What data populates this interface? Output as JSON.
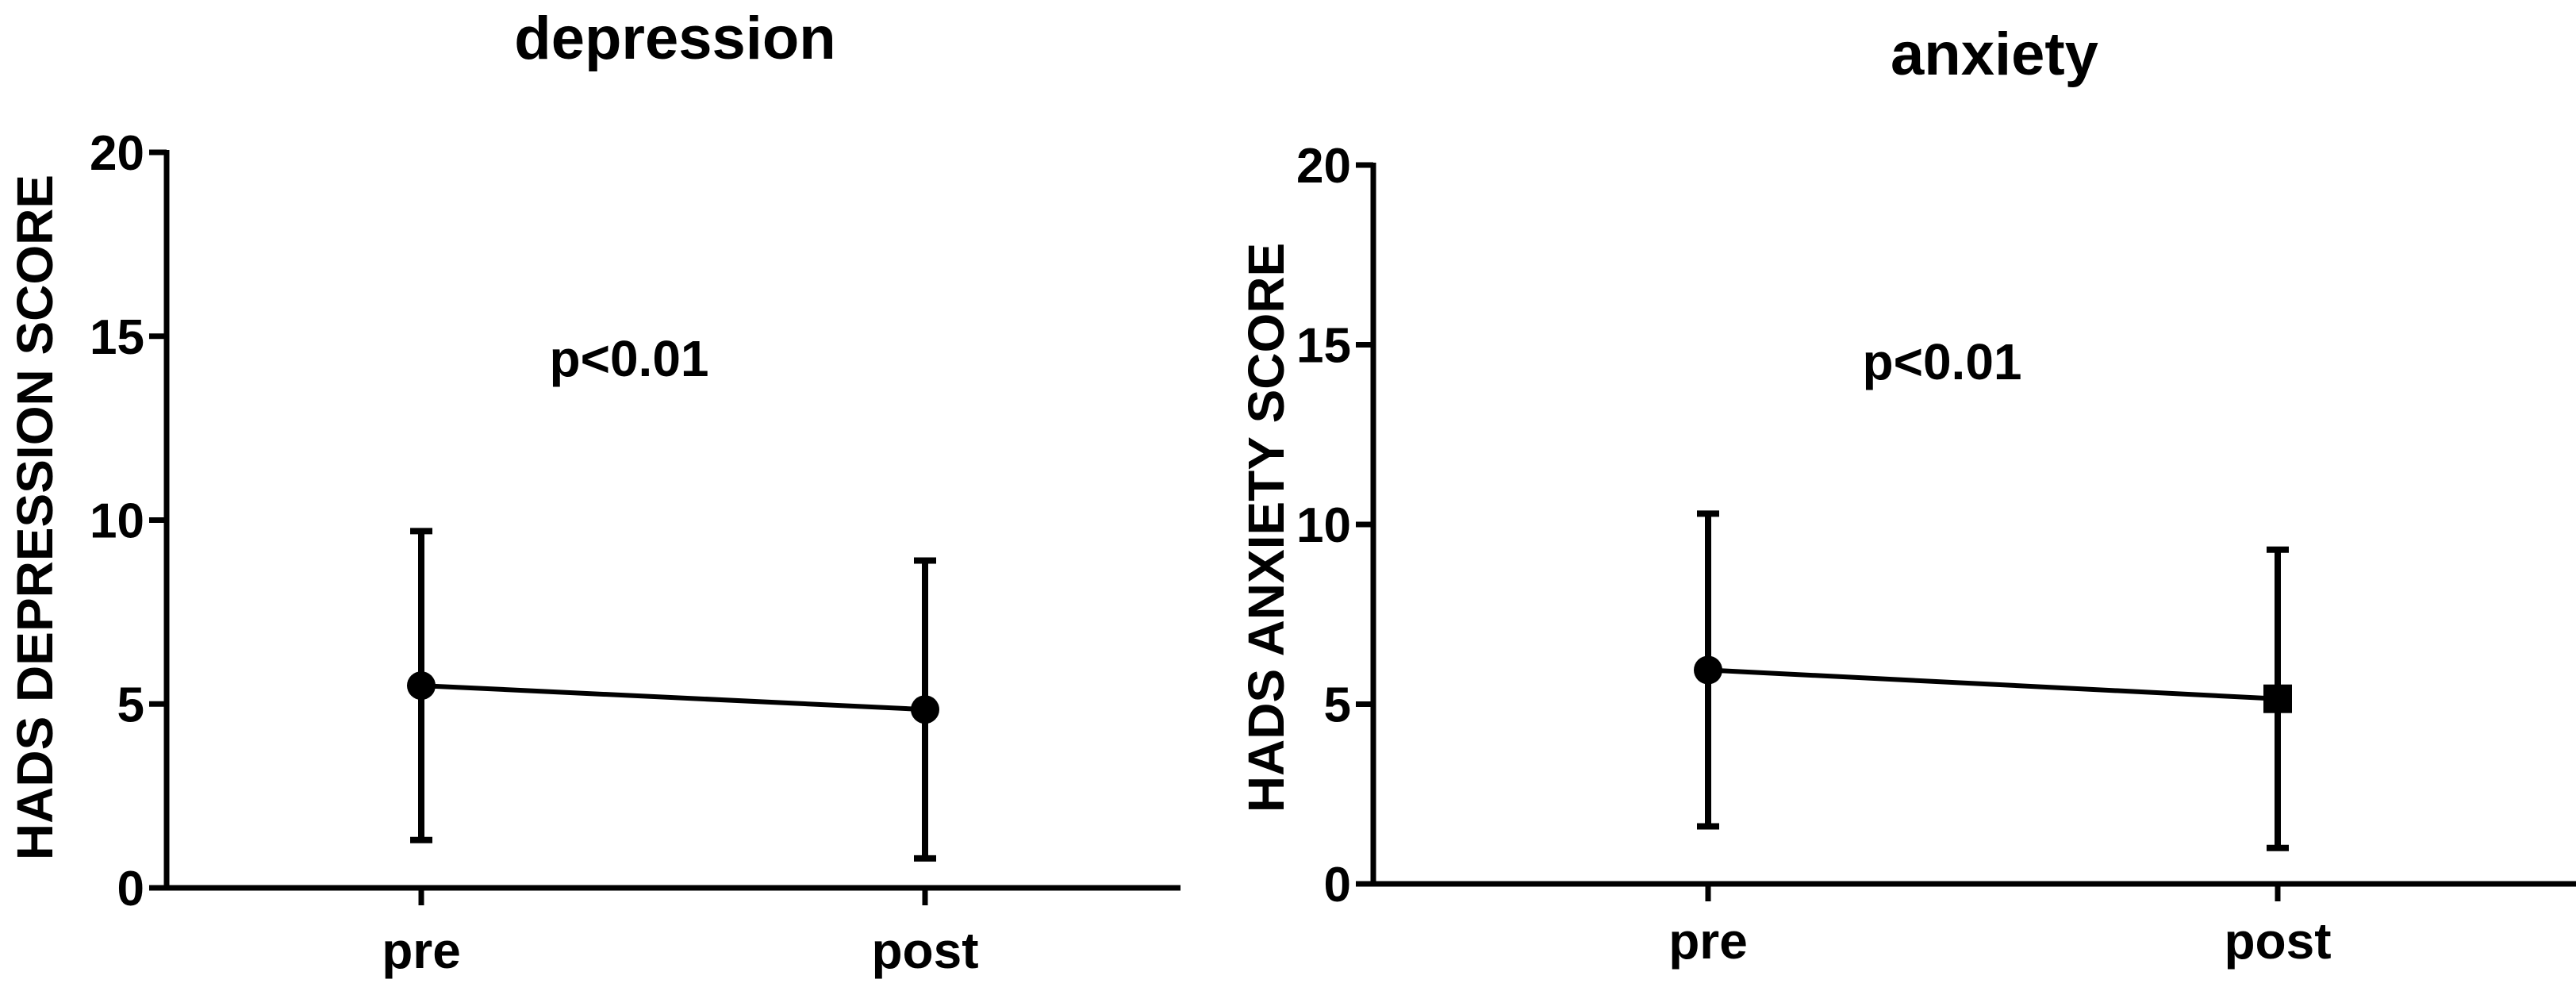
{
  "chart_data": [
    {
      "type": "line",
      "title": "depression",
      "xlabel": "",
      "ylabel": "HADS DEPRESSION SCORE",
      "categories": [
        "pre",
        "post"
      ],
      "ylim": [
        0,
        20
      ],
      "yticks": [
        "0",
        "5",
        "10",
        "15",
        "20"
      ],
      "annotation": "p<0.01",
      "grid": false,
      "series": [
        {
          "marker": "circle",
          "values": [
            5.5,
            4.85
          ],
          "error_low": [
            1.3,
            0.8
          ],
          "error_high": [
            9.7,
            8.9
          ]
        }
      ]
    },
    {
      "type": "line",
      "title": "anxiety",
      "xlabel": "",
      "ylabel": "HADS ANXIETY SCORE",
      "categories": [
        "pre",
        "post"
      ],
      "ylim": [
        0,
        20
      ],
      "yticks": [
        "0",
        "5",
        "10",
        "15",
        "20"
      ],
      "annotation": "p<0.01",
      "grid": false,
      "series": [
        {
          "marker": "circle-square",
          "values": [
            5.95,
            5.15
          ],
          "error_low": [
            1.6,
            1.0
          ],
          "error_high": [
            10.3,
            9.3
          ]
        }
      ]
    }
  ]
}
